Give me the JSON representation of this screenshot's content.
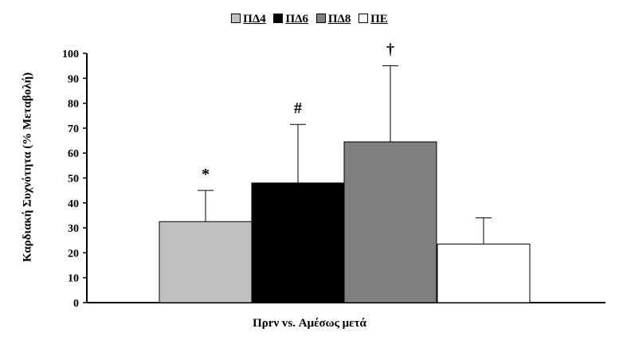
{
  "chart_data": {
    "type": "bar",
    "xlabel": "Πρrν vs. Αμέσως μετά",
    "ylabel": "Καρδιακή Συχνότητα (% Μεταβολή)",
    "ylim": [
      0,
      100
    ],
    "yticks": [
      0,
      10,
      20,
      30,
      40,
      50,
      60,
      70,
      80,
      90,
      100
    ],
    "legend_position": "top-center",
    "grid": false,
    "series": [
      {
        "name": "ΠΔ4",
        "value": 32.5,
        "error": 12.5,
        "annotation": "*",
        "color": "#c0c0c0"
      },
      {
        "name": "ΠΔ6",
        "value": 48,
        "error": 23.5,
        "annotation": "#",
        "color": "#000000"
      },
      {
        "name": "ΠΔ8",
        "value": 64.5,
        "error": 30.5,
        "annotation": "†",
        "color": "#808080"
      },
      {
        "name": "ΠΕ",
        "value": 23.5,
        "error": 10.5,
        "annotation": "",
        "color": "#ffffff"
      }
    ]
  }
}
